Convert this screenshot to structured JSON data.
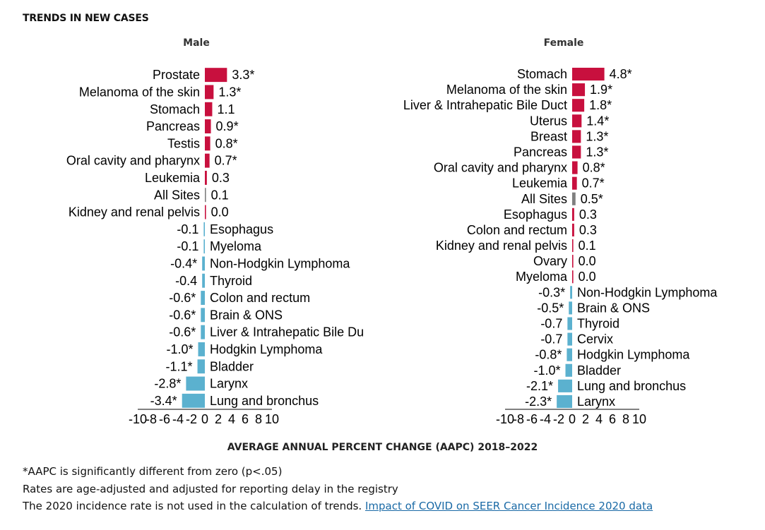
{
  "heading": "TRENDS IN NEW CASES",
  "colors": {
    "positive": "#c8103e",
    "negative": "#5bb1cf",
    "all_sites": "#7f7f7f",
    "axis": "#000000"
  },
  "chart_data": [
    {
      "type": "bar",
      "orientation": "horizontal",
      "title": "Male",
      "xlabel": "AVERAGE ANNUAL PERCENT CHANGE (AAPC) 2018–2022",
      "xlim": [
        -10,
        10
      ],
      "xticks": [
        "-10",
        "-8",
        "-6",
        "-4",
        "-2",
        "0",
        "2",
        "4",
        "6",
        "8",
        "10"
      ],
      "categories": [
        "Prostate",
        "Melanoma of the skin",
        "Stomach",
        "Pancreas",
        "Testis",
        "Oral cavity and pharynx",
        "Leukemia",
        "All Sites",
        "Kidney and renal pelvis",
        "Esophagus",
        "Myeloma",
        "Non-Hodgkin Lymphoma",
        "Thyroid",
        "Colon and rectum",
        "Brain & ONS",
        "Liver & Intrahepatic Bile Du",
        "Hodgkin Lymphoma",
        "Bladder",
        "Larynx",
        "Lung and bronchus"
      ],
      "values": [
        3.3,
        1.3,
        1.1,
        0.9,
        0.8,
        0.7,
        0.3,
        0.1,
        0.0,
        -0.1,
        -0.1,
        -0.4,
        -0.4,
        -0.6,
        -0.6,
        -0.6,
        -1.0,
        -1.1,
        -2.8,
        -3.4
      ],
      "labels": [
        "3.3*",
        "1.3*",
        "1.1",
        "0.9*",
        "0.8*",
        "0.7*",
        "0.3",
        "0.1",
        "0.0",
        "-0.1",
        "-0.1",
        "-0.4*",
        "-0.4",
        "-0.6*",
        "-0.6*",
        "-0.6*",
        "-1.0*",
        "-1.1*",
        "-2.8*",
        "-3.4*"
      ]
    },
    {
      "type": "bar",
      "orientation": "horizontal",
      "title": "Female",
      "xlabel": "AVERAGE ANNUAL PERCENT CHANGE (AAPC) 2018–2022",
      "xlim": [
        -10,
        10
      ],
      "xticks": [
        "-10",
        "-8",
        "-6",
        "-4",
        "-2",
        "0",
        "2",
        "4",
        "6",
        "8",
        "10"
      ],
      "categories": [
        "Stomach",
        "Melanoma of the skin",
        "Liver & Intrahepatic Bile Duct",
        "Uterus",
        "Breast",
        "Pancreas",
        "Oral cavity and pharynx",
        "Leukemia",
        "All Sites",
        "Esophagus",
        "Colon and rectum",
        "Kidney and renal pelvis",
        "Ovary",
        "Myeloma",
        "Non-Hodgkin Lymphoma",
        "Brain & ONS",
        "Thyroid",
        "Cervix",
        "Hodgkin Lymphoma",
        "Bladder",
        "Lung and bronchus",
        "Larynx"
      ],
      "values": [
        4.8,
        1.9,
        1.8,
        1.4,
        1.3,
        1.3,
        0.8,
        0.7,
        0.5,
        0.3,
        0.3,
        0.1,
        0.0,
        0.0,
        -0.3,
        -0.5,
        -0.7,
        -0.7,
        -0.8,
        -1.0,
        -2.1,
        -2.3
      ],
      "labels": [
        "4.8*",
        "1.9*",
        "1.8*",
        "1.4*",
        "1.3*",
        "1.3*",
        "0.8*",
        "0.7*",
        "0.5*",
        "0.3",
        "0.3",
        "0.1",
        "0.0",
        "0.0",
        "-0.3*",
        "-0.5*",
        "-0.7",
        "-0.7",
        "-0.8*",
        "-1.0*",
        "-2.1*",
        "-2.3*"
      ]
    }
  ],
  "notes": {
    "line1": "*AAPC is significantly different from zero (p<.05)",
    "line2": "Rates are age-adjusted and adjusted for reporting delay in the registry",
    "line3": "The 2020 incidence rate is not used in the calculation of trends.",
    "link": "Impact of COVID on SEER Cancer Incidence 2020 data"
  }
}
